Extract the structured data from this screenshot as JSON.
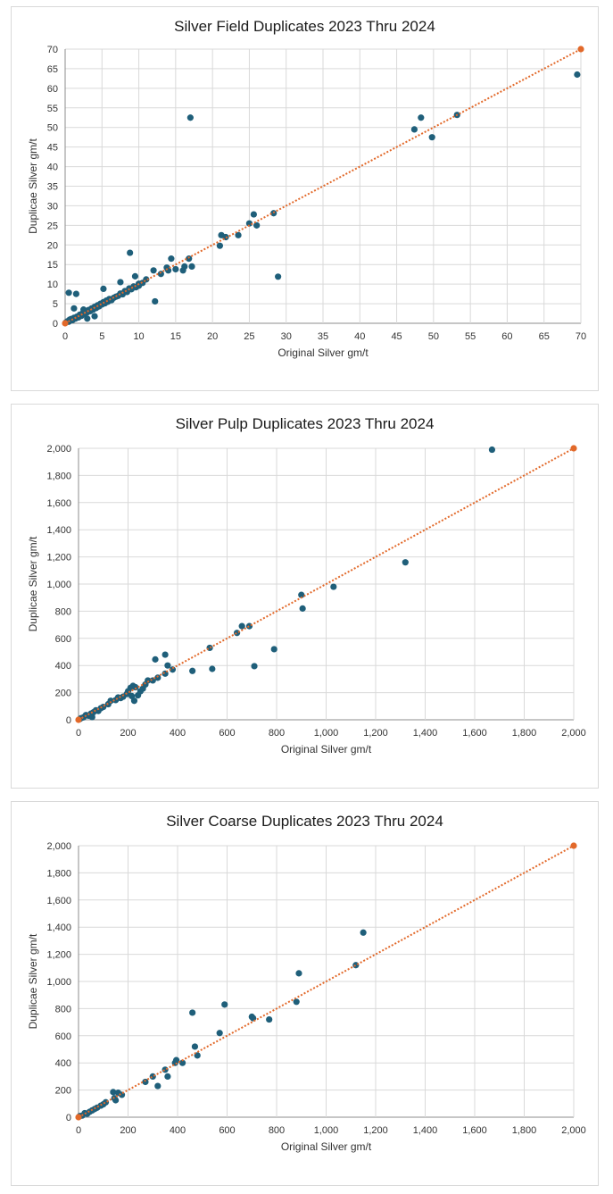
{
  "colors": {
    "points": "#1f5f7a",
    "trend": "#e2692a",
    "grid": "#d9d9d9",
    "axis": "#8c8c8c"
  },
  "chart_data": [
    {
      "type": "scatter",
      "title": "Silver Field Duplicates 2023 Thru 2024",
      "xlabel": "Original Silver gm/t",
      "ylabel": "Duplicae Silver gm/t",
      "xlim": [
        0,
        70
      ],
      "ylim": [
        0,
        70
      ],
      "xticks": [
        0,
        5,
        10,
        15,
        20,
        25,
        30,
        35,
        40,
        45,
        50,
        55,
        60,
        65,
        70
      ],
      "xtick_labels": [
        "0",
        "5",
        "10",
        "15",
        "20",
        "25",
        "30",
        "35",
        "40",
        "45",
        "50",
        "55",
        "60",
        "65",
        "70"
      ],
      "yticks": [
        0,
        5,
        10,
        15,
        20,
        25,
        30,
        35,
        40,
        45,
        50,
        55,
        60,
        65,
        70
      ],
      "ytick_labels": [
        "0",
        "5",
        "10",
        "15",
        "20",
        "25",
        "30",
        "35",
        "40",
        "45",
        "50",
        "55",
        "60",
        "65",
        "70"
      ],
      "trendline": [
        [
          0,
          0
        ],
        [
          70,
          70
        ]
      ],
      "points": [
        [
          0.1,
          0.2
        ],
        [
          0.3,
          0.5
        ],
        [
          0.5,
          0.4
        ],
        [
          0.6,
          0.9
        ],
        [
          0.8,
          1.1
        ],
        [
          1,
          0.8
        ],
        [
          1.2,
          1.4
        ],
        [
          1.4,
          1.2
        ],
        [
          1.6,
          1.7
        ],
        [
          1.8,
          1.5
        ],
        [
          2,
          2.2
        ],
        [
          2.2,
          1.9
        ],
        [
          2.4,
          2.6
        ],
        [
          2.6,
          2.3
        ],
        [
          2.8,
          3.0
        ],
        [
          3,
          2.8
        ],
        [
          3.2,
          3.4
        ],
        [
          3.4,
          3.1
        ],
        [
          3.6,
          3.8
        ],
        [
          3.8,
          3.5
        ],
        [
          4,
          4.2
        ],
        [
          4.2,
          3.9
        ],
        [
          4.4,
          4.6
        ],
        [
          4.6,
          4.3
        ],
        [
          4.8,
          5.0
        ],
        [
          5,
          4.8
        ],
        [
          5.2,
          5.4
        ],
        [
          5.4,
          5.1
        ],
        [
          5.6,
          5.8
        ],
        [
          5.8,
          5.5
        ],
        [
          6,
          6.2
        ],
        [
          6.3,
          5.9
        ],
        [
          6.6,
          6.5
        ],
        [
          6.9,
          6.8
        ],
        [
          7.2,
          7.0
        ],
        [
          7.5,
          7.6
        ],
        [
          7.8,
          7.4
        ],
        [
          8.1,
          8.2
        ],
        [
          8.4,
          8.0
        ],
        [
          8.7,
          8.9
        ],
        [
          9,
          8.7
        ],
        [
          9.3,
          9.4
        ],
        [
          9.6,
          9.2
        ],
        [
          10,
          10.1
        ],
        [
          10.5,
          10.3
        ],
        [
          11,
          11.2
        ],
        [
          0.5,
          7.8
        ],
        [
          1.5,
          7.5
        ],
        [
          1.2,
          3.8
        ],
        [
          2.5,
          3.5
        ],
        [
          3,
          1.2
        ],
        [
          4,
          1.8
        ],
        [
          5.2,
          8.8
        ],
        [
          7.5,
          10.5
        ],
        [
          8.8,
          18
        ],
        [
          9.5,
          12
        ],
        [
          10,
          9.6
        ],
        [
          12,
          13.5
        ],
        [
          12.2,
          5.6
        ],
        [
          13,
          12.6
        ],
        [
          13.8,
          14.2
        ],
        [
          14,
          13.5
        ],
        [
          14.4,
          16.5
        ],
        [
          15,
          13.8
        ],
        [
          16,
          13.5
        ],
        [
          16.2,
          14.5
        ],
        [
          16.8,
          16.5
        ],
        [
          17.2,
          14.5
        ],
        [
          17,
          52.5
        ],
        [
          21,
          19.8
        ],
        [
          21.2,
          22.5
        ],
        [
          21.8,
          22
        ],
        [
          23.5,
          22.5
        ],
        [
          25,
          25.5
        ],
        [
          25.6,
          27.8
        ],
        [
          26,
          25
        ],
        [
          28.3,
          28.1
        ],
        [
          28.9,
          11.9
        ],
        [
          47.4,
          49.5
        ],
        [
          48.3,
          52.5
        ],
        [
          49.8,
          47.5
        ],
        [
          53.2,
          53.2
        ],
        [
          69.5,
          63.5
        ]
      ]
    },
    {
      "type": "scatter",
      "title": "Silver Pulp Duplicates 2023 Thru 2024",
      "xlabel": "Original Silver gm/t",
      "ylabel": "Duplicae Silver gm/t",
      "xlim": [
        0,
        2000
      ],
      "ylim": [
        0,
        2000
      ],
      "xticks": [
        0,
        200,
        400,
        600,
        800,
        1000,
        1200,
        1400,
        1600,
        1800,
        2000
      ],
      "xtick_labels": [
        "0",
        "200",
        "400",
        "600",
        "800",
        "1,000",
        "1,200",
        "1,400",
        "1,600",
        "1,800",
        "2,000"
      ],
      "yticks": [
        0,
        200,
        400,
        600,
        800,
        1000,
        1200,
        1400,
        1600,
        1800,
        2000
      ],
      "ytick_labels": [
        "0",
        "200",
        "400",
        "600",
        "800",
        "1,000",
        "1,200",
        "1,400",
        "1,600",
        "1,800",
        "2,000"
      ],
      "trendline": [
        [
          0,
          0
        ],
        [
          2000,
          2000
        ]
      ],
      "points": [
        [
          5,
          5
        ],
        [
          10,
          12
        ],
        [
          20,
          18
        ],
        [
          30,
          35
        ],
        [
          40,
          30
        ],
        [
          50,
          45
        ],
        [
          55,
          20
        ],
        [
          60,
          55
        ],
        [
          70,
          70
        ],
        [
          80,
          65
        ],
        [
          90,
          85
        ],
        [
          100,
          95
        ],
        [
          120,
          115
        ],
        [
          130,
          140
        ],
        [
          150,
          145
        ],
        [
          160,
          165
        ],
        [
          170,
          160
        ],
        [
          180,
          170
        ],
        [
          195,
          190
        ],
        [
          200,
          210
        ],
        [
          210,
          235
        ],
        [
          215,
          175
        ],
        [
          220,
          250
        ],
        [
          225,
          140
        ],
        [
          230,
          240
        ],
        [
          240,
          180
        ],
        [
          250,
          210
        ],
        [
          260,
          230
        ],
        [
          270,
          260
        ],
        [
          280,
          290
        ],
        [
          300,
          290
        ],
        [
          310,
          445
        ],
        [
          320,
          310
        ],
        [
          350,
          340
        ],
        [
          350,
          480
        ],
        [
          360,
          400
        ],
        [
          380,
          370
        ],
        [
          460,
          360
        ],
        [
          530,
          530
        ],
        [
          540,
          375
        ],
        [
          640,
          640
        ],
        [
          660,
          690
        ],
        [
          690,
          690
        ],
        [
          710,
          395
        ],
        [
          790,
          520
        ],
        [
          900,
          920
        ],
        [
          905,
          820
        ],
        [
          1030,
          980
        ],
        [
          1320,
          1160
        ],
        [
          1670,
          1990
        ]
      ]
    },
    {
      "type": "scatter",
      "title": "Silver Coarse Duplicates 2023 Thru 2024",
      "xlabel": "Original Silver gm/t",
      "ylabel": "Duplicae Silver gm/t",
      "xlim": [
        0,
        2000
      ],
      "ylim": [
        0,
        2000
      ],
      "xticks": [
        0,
        200,
        400,
        600,
        800,
        1000,
        1200,
        1400,
        1600,
        1800,
        2000
      ],
      "xtick_labels": [
        "0",
        "200",
        "400",
        "600",
        "800",
        "1,000",
        "1,200",
        "1,400",
        "1,600",
        "1,800",
        "2,000"
      ],
      "yticks": [
        0,
        200,
        400,
        600,
        800,
        1000,
        1200,
        1400,
        1600,
        1800,
        2000
      ],
      "ytick_labels": [
        "0",
        "200",
        "400",
        "600",
        "800",
        "1,000",
        "1,200",
        "1,400",
        "1,600",
        "1,800",
        "2,000"
      ],
      "trendline": [
        [
          0,
          0
        ],
        [
          2000,
          2000
        ]
      ],
      "points": [
        [
          5,
          8
        ],
        [
          15,
          12
        ],
        [
          25,
          30
        ],
        [
          35,
          25
        ],
        [
          45,
          40
        ],
        [
          55,
          50
        ],
        [
          65,
          60
        ],
        [
          75,
          70
        ],
        [
          90,
          85
        ],
        [
          100,
          95
        ],
        [
          110,
          110
        ],
        [
          140,
          185
        ],
        [
          145,
          140
        ],
        [
          150,
          125
        ],
        [
          160,
          180
        ],
        [
          175,
          165
        ],
        [
          270,
          260
        ],
        [
          300,
          300
        ],
        [
          320,
          230
        ],
        [
          350,
          350
        ],
        [
          360,
          300
        ],
        [
          390,
          400
        ],
        [
          395,
          420
        ],
        [
          420,
          400
        ],
        [
          460,
          770
        ],
        [
          470,
          520
        ],
        [
          480,
          455
        ],
        [
          570,
          620
        ],
        [
          590,
          830
        ],
        [
          700,
          740
        ],
        [
          705,
          730
        ],
        [
          770,
          720
        ],
        [
          880,
          850
        ],
        [
          890,
          1060
        ],
        [
          1120,
          1120
        ],
        [
          1150,
          1360
        ]
      ]
    }
  ]
}
